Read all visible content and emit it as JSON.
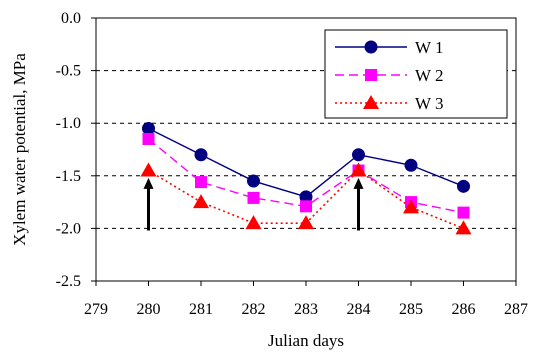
{
  "chart_data": {
    "type": "line",
    "title": "",
    "xlabel": "Julian days",
    "ylabel": "Xylem water potential, MPa",
    "xlim": [
      279,
      287
    ],
    "ylim": [
      -2.5,
      0.0
    ],
    "x_ticks": [
      "279",
      "280",
      "281",
      "282",
      "283",
      "284",
      "285",
      "286",
      "287"
    ],
    "y_ticks": [
      "0.0",
      "-0.5",
      "-1.0",
      "-1.5",
      "-2.0",
      "-2.5"
    ],
    "grid": "horizontal dashed",
    "legend_position": "top-right",
    "x": [
      280,
      281,
      282,
      283,
      284,
      285,
      286
    ],
    "series": [
      {
        "name": "W 1",
        "values": [
          -1.05,
          -1.3,
          -1.55,
          -1.7,
          -1.3,
          -1.4,
          -1.6
        ],
        "color": "#000080",
        "marker": "circle",
        "line": "solid"
      },
      {
        "name": "W 2",
        "values": [
          -1.15,
          -1.56,
          -1.71,
          -1.79,
          -1.45,
          -1.75,
          -1.85
        ],
        "color": "#ff00ff",
        "marker": "square",
        "line": "dashed"
      },
      {
        "name": "W 3",
        "values": [
          -1.45,
          -1.75,
          -1.95,
          -1.95,
          -1.45,
          -1.8,
          -2.0
        ],
        "color": "#ff0000",
        "marker": "triangle",
        "line": "dotted"
      }
    ],
    "annotations": [
      {
        "type": "arrow",
        "x": 280,
        "from_y": -2.02,
        "to_y": -1.52
      },
      {
        "type": "arrow",
        "x": 284,
        "from_y": -2.02,
        "to_y": -1.52
      }
    ]
  }
}
